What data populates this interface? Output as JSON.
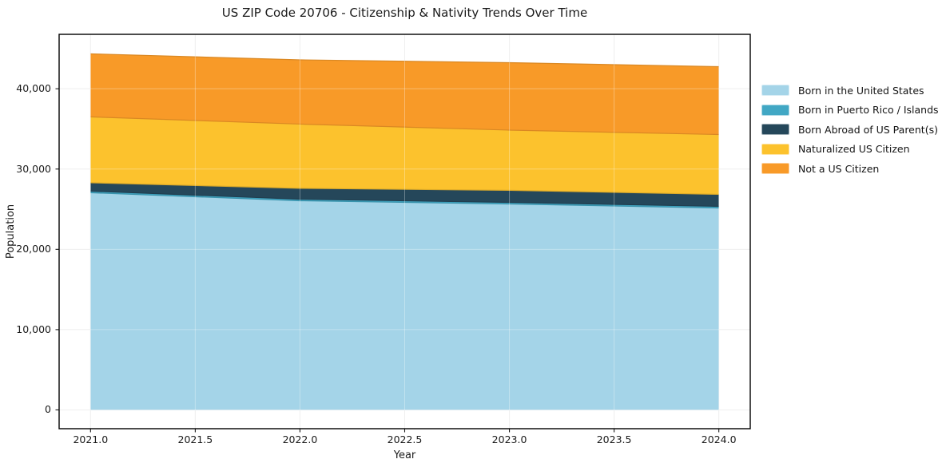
{
  "chart_data": {
    "type": "area",
    "stacked": true,
    "title": "US ZIP Code 20706 - Citizenship & Nativity Trends Over Time",
    "xlabel": "Year",
    "ylabel": "Population",
    "x": [
      2021,
      2022,
      2023,
      2024
    ],
    "series": [
      {
        "name": "Born in the United States",
        "color": "#a4d4e8",
        "values": [
          27050,
          26050,
          25650,
          25150
        ]
      },
      {
        "name": "Born in Puerto Rico / Islands",
        "color": "#41a7c4",
        "values": [
          200,
          200,
          200,
          200
        ]
      },
      {
        "name": "Born Abroad of US Parent(s)",
        "color": "#25475a",
        "values": [
          1050,
          1350,
          1500,
          1500
        ]
      },
      {
        "name": "Naturalized US Citizen",
        "color": "#fcc22d",
        "values": [
          8200,
          8000,
          7500,
          7450
        ]
      },
      {
        "name": "Not a US Citizen",
        "color": "#f89a28",
        "values": [
          7850,
          8000,
          8400,
          8450
        ]
      }
    ],
    "totals": [
      44350,
      43600,
      43250,
      42750
    ],
    "xticks": [
      2021.0,
      2021.5,
      2022.0,
      2022.5,
      2023.0,
      2023.5,
      2024.0
    ],
    "xtick_labels": [
      "2021.0",
      "2021.5",
      "2022.0",
      "2022.5",
      "2023.0",
      "2023.5",
      "2024.0"
    ],
    "yticks": [
      0,
      10000,
      20000,
      30000,
      40000
    ],
    "ytick_labels": [
      "0",
      "10,000",
      "20,000",
      "30,000",
      "40,000"
    ],
    "xlim": [
      2020.85,
      2024.15
    ],
    "ylim": [
      -2340,
      46780
    ],
    "grid": true,
    "grid_color": "#e8e8e8",
    "frame_color": "#000000",
    "legend_position": "center right outside",
    "legend_frame": false
  }
}
